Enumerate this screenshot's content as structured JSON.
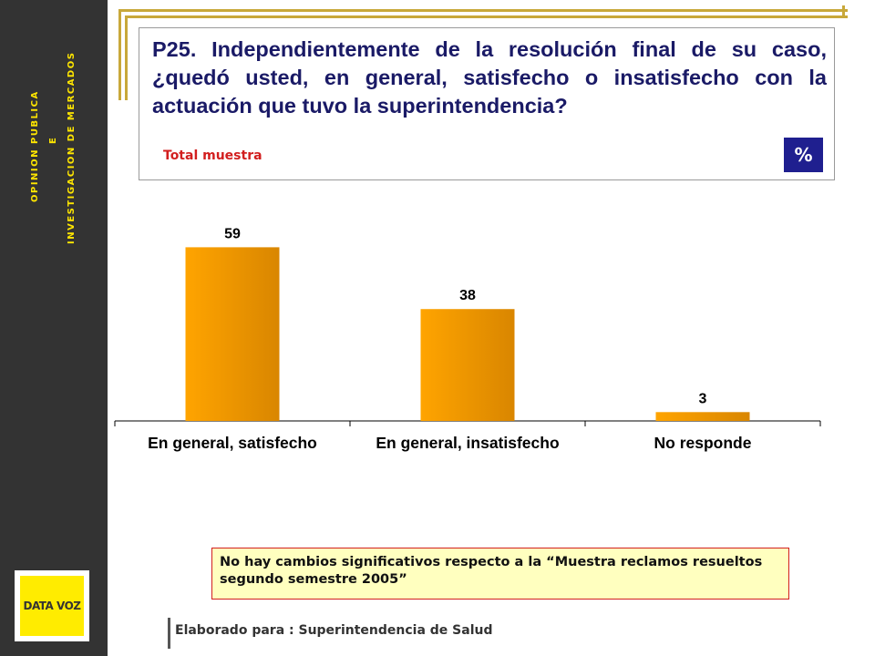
{
  "sidebar": {
    "line1": "OPINION PUBLICA",
    "line2": "E",
    "line3": "INVESTIGACION DE MERCADOS",
    "logo": "DATA VOZ",
    "brand_color": "#ffec00"
  },
  "question": {
    "text": "P25. Independientemente de la resolución final de su caso, ¿quedó usted, en general, satisfecho o insatisfecho con la actuación que tuvo la superintendencia?",
    "sample_label": "Total muestra",
    "unit_badge": "%"
  },
  "chart_data": {
    "type": "bar",
    "categories": [
      "En general, satisfecho",
      "En general, insatisfecho",
      "No responde"
    ],
    "values": [
      59,
      38,
      3
    ],
    "data_labels": [
      "59",
      "38",
      "3"
    ],
    "ylim": [
      0,
      65
    ],
    "grid": false,
    "bar_color": "#f5a000"
  },
  "note": {
    "text": "No hay cambios significativos respecto a la  “Muestra reclamos resueltos segundo semestre 2005”"
  },
  "footer": {
    "text": "Elaborado para : Superintendencia de Salud"
  }
}
